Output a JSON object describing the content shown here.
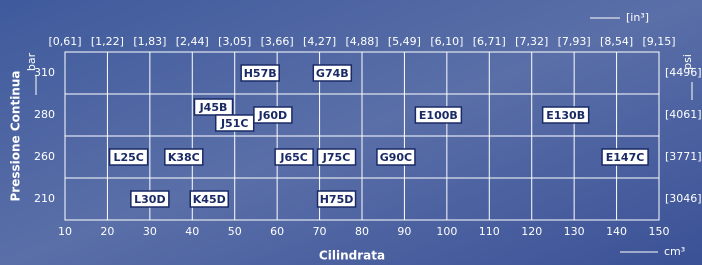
{
  "chart_data": {
    "type": "label-map",
    "x_label": "Cilindrata",
    "y_label": "Pressione Continua",
    "x_unit": "cm³",
    "x2_unit": "[in³]",
    "y_unit": "bar",
    "y2_unit": "psi",
    "xlim": [
      10,
      150
    ],
    "xticks": [
      10,
      20,
      30,
      40,
      50,
      60,
      70,
      80,
      90,
      100,
      110,
      120,
      130,
      140,
      150
    ],
    "x2ticks": [
      {
        "value": 10,
        "label": "[0,61]"
      },
      {
        "value": 20,
        "label": "[1,22]"
      },
      {
        "value": 30,
        "label": "[1,83]"
      },
      {
        "value": 40,
        "label": "[2,44]"
      },
      {
        "value": 50,
        "label": "[3,05]"
      },
      {
        "value": 60,
        "label": "[3,66]"
      },
      {
        "value": 70,
        "label": "[4,27]"
      },
      {
        "value": 80,
        "label": "[4,88]"
      },
      {
        "value": 90,
        "label": "[5,49]"
      },
      {
        "value": 100,
        "label": "[6,10]"
      },
      {
        "value": 110,
        "label": "[6,71]"
      },
      {
        "value": 120,
        "label": "[7,32]"
      },
      {
        "value": 130,
        "label": "[7,93]"
      },
      {
        "value": 140,
        "label": "[8,54]"
      },
      {
        "value": 150,
        "label": "[9,15]"
      }
    ],
    "categories": [
      "310",
      "280",
      "260",
      "210"
    ],
    "y2_labels": [
      "[4496]",
      "[4061]",
      "[3771]",
      "[3046]"
    ],
    "points": [
      {
        "name": "H57B",
        "x": 56,
        "category": "310"
      },
      {
        "name": "G74B",
        "x": 73,
        "category": "310"
      },
      {
        "name": "J45B",
        "x": 45,
        "category": "280"
      },
      {
        "name": "J51C",
        "x": 50,
        "category": "280"
      },
      {
        "name": "J60D",
        "x": 59,
        "category": "280"
      },
      {
        "name": "E100B",
        "x": 98,
        "category": "280"
      },
      {
        "name": "E130B",
        "x": 128,
        "category": "280"
      },
      {
        "name": "L25C",
        "x": 25,
        "category": "260"
      },
      {
        "name": "K38C",
        "x": 38,
        "category": "260"
      },
      {
        "name": "J65C",
        "x": 64,
        "category": "260"
      },
      {
        "name": "J75C",
        "x": 74,
        "category": "260"
      },
      {
        "name": "G90C",
        "x": 88,
        "category": "260"
      },
      {
        "name": "E147C",
        "x": 142,
        "category": "260"
      },
      {
        "name": "L30D",
        "x": 30,
        "category": "210"
      },
      {
        "name": "K45D",
        "x": 44,
        "category": "210"
      },
      {
        "name": "H75D",
        "x": 74,
        "category": "210"
      }
    ]
  }
}
